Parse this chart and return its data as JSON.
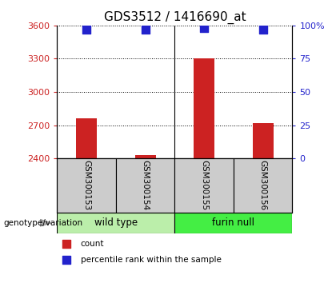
{
  "title": "GDS3512 / 1416690_at",
  "samples": [
    "GSM300153",
    "GSM300154",
    "GSM300155",
    "GSM300156"
  ],
  "counts": [
    2760,
    2432,
    3300,
    2720
  ],
  "percentiles": [
    97,
    97,
    98,
    97
  ],
  "ylim_left": [
    2400,
    3600
  ],
  "ylim_right": [
    0,
    100
  ],
  "yticks_left": [
    2400,
    2700,
    3000,
    3300,
    3600
  ],
  "yticks_right": [
    0,
    25,
    50,
    75,
    100
  ],
  "ytick_labels_right": [
    "0",
    "25",
    "50",
    "75",
    "100%"
  ],
  "bar_color": "#cc2222",
  "dot_color": "#2222cc",
  "groups": [
    {
      "label": "wild type",
      "indices": [
        0,
        1
      ],
      "color": "#bbeeaa"
    },
    {
      "label": "furin null",
      "indices": [
        2,
        3
      ],
      "color": "#44ee44"
    }
  ],
  "group_label": "genotype/variation",
  "legend_items": [
    {
      "color": "#cc2222",
      "label": "count"
    },
    {
      "color": "#2222cc",
      "label": "percentile rank within the sample"
    }
  ],
  "title_color": "#000000",
  "left_tick_color": "#cc2222",
  "right_tick_color": "#2222cc",
  "sample_box_color": "#cccccc",
  "bar_width": 0.35,
  "dot_size": 55
}
